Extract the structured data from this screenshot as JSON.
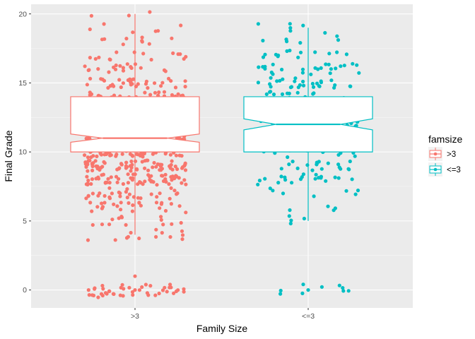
{
  "chart_data": {
    "type": "boxplot-jitter",
    "xlabel": "Family Size",
    "ylabel": "Final Grade",
    "categories": [
      ">3",
      "<=3"
    ],
    "ylim": [
      -1.3,
      20.7
    ],
    "yticks": [
      0,
      5,
      10,
      15,
      20
    ],
    "grid": true,
    "notched": true,
    "legend": {
      "title": "famsize",
      "position": "right",
      "entries": [
        {
          "label": ">3",
          "color": "#F8766D"
        },
        {
          "label": "<=3",
          "color": "#00BFC4"
        }
      ]
    },
    "series": [
      {
        "category": ">3",
        "color": "#F8766D",
        "n_points": 738,
        "zero_count": 44,
        "box": {
          "whisker_low": 4,
          "q1": 10,
          "median": 11,
          "q3": 14,
          "whisker_high": 20,
          "notch_low": 10.7,
          "notch_high": 11.3
        },
        "outliers": [
          0,
          1
        ]
      },
      {
        "category": "<=3",
        "color": "#00BFC4",
        "n_points": 306,
        "zero_count": 9,
        "box": {
          "whisker_low": 5,
          "q1": 10,
          "median": 12,
          "q3": 14,
          "whisker_high": 19,
          "notch_low": 11.6,
          "notch_high": 12.4
        },
        "outliers": [
          0
        ]
      }
    ]
  }
}
